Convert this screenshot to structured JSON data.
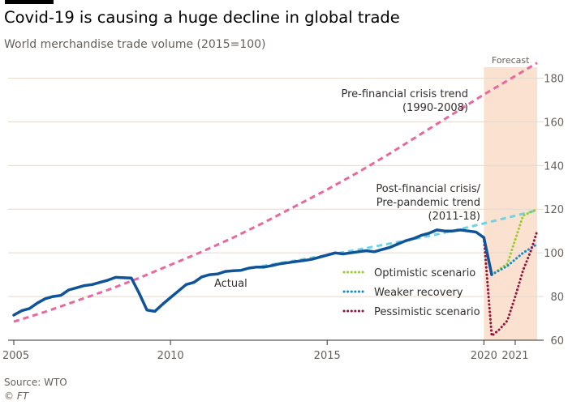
{
  "title": "Covid-19 is causing a huge decline in global trade",
  "subtitle": "World merchandise trade volume (2015=100)",
  "source": "Source: WTO",
  "credit": "© FT",
  "chart_data": {
    "type": "line",
    "title": "Covid-19 is causing a huge decline in global trade",
    "subtitle": "World merchandise trade volume (2015=100)",
    "xlabel": "",
    "ylabel": "",
    "xlim": [
      2005.0,
      2021.7
    ],
    "ylim": [
      60,
      185
    ],
    "yticks": [
      60,
      80,
      100,
      120,
      140,
      160,
      180
    ],
    "xticks": [
      {
        "value": 2005,
        "label": "2005"
      },
      {
        "value": 2010,
        "label": "2010"
      },
      {
        "value": 2015,
        "label": "2015"
      },
      {
        "value": 2020,
        "label": "2020"
      },
      {
        "value": 2021,
        "label": "2021"
      }
    ],
    "grid": true,
    "forecast": {
      "from": 2020.0,
      "to": 2021.7,
      "label": "Forecast",
      "color": "#fbe1cf"
    },
    "series": [
      {
        "name": "Pre-financial crisis trend (1990-2008)",
        "style": "dashed",
        "color": "#e8689f",
        "labels": [
          "Pre-financial crisis trend",
          "(1990-2008)"
        ],
        "points": [
          [
            2005,
            68.5
          ],
          [
            2006,
            73
          ],
          [
            2007,
            78
          ],
          [
            2008,
            83
          ],
          [
            2009,
            88.5
          ],
          [
            2010,
            94.5
          ],
          [
            2011,
            100.5
          ],
          [
            2012,
            107
          ],
          [
            2013,
            114
          ],
          [
            2014,
            121.5
          ],
          [
            2015,
            129
          ],
          [
            2016,
            137
          ],
          [
            2017,
            145.5
          ],
          [
            2018,
            154.5
          ],
          [
            2019,
            163.5
          ],
          [
            2020,
            172.5
          ],
          [
            2021,
            181
          ],
          [
            2021.7,
            187
          ]
        ]
      },
      {
        "name": "Post-financial crisis/Pre-pandemic trend (2011-18)",
        "style": "dashed",
        "color": "#6ed3e6",
        "labels": [
          "Post-financial crisis/",
          "Pre-pandemic trend",
          "(2011-18)"
        ],
        "points": [
          [
            2012.6,
            93.2
          ],
          [
            2014,
            96.5
          ],
          [
            2016,
            101.5
          ],
          [
            2018,
            107
          ],
          [
            2019,
            110
          ],
          [
            2020,
            113.5
          ],
          [
            2021,
            117
          ],
          [
            2021.7,
            119.5
          ]
        ]
      },
      {
        "name": "Actual",
        "style": "solid",
        "color": "#0f5499",
        "labels": [
          "Actual"
        ],
        "points": [
          [
            2005.0,
            71.5
          ],
          [
            2005.25,
            73.5
          ],
          [
            2005.5,
            74.5
          ],
          [
            2005.75,
            77
          ],
          [
            2006.0,
            79
          ],
          [
            2006.25,
            80
          ],
          [
            2006.5,
            80.5
          ],
          [
            2006.75,
            83
          ],
          [
            2007.0,
            84
          ],
          [
            2007.25,
            85
          ],
          [
            2007.5,
            85.5
          ],
          [
            2007.75,
            86.5
          ],
          [
            2008.0,
            87.5
          ],
          [
            2008.25,
            88.8
          ],
          [
            2008.5,
            88.6
          ],
          [
            2008.75,
            88.5
          ],
          [
            2009.0,
            81.5
          ],
          [
            2009.25,
            73.8
          ],
          [
            2009.5,
            73.2
          ],
          [
            2009.75,
            76.5
          ],
          [
            2010.0,
            79.5
          ],
          [
            2010.25,
            82.5
          ],
          [
            2010.5,
            85.5
          ],
          [
            2010.75,
            86.5
          ],
          [
            2011.0,
            89
          ],
          [
            2011.25,
            90
          ],
          [
            2011.5,
            90.3
          ],
          [
            2011.75,
            91.5
          ],
          [
            2012.0,
            91.8
          ],
          [
            2012.25,
            92
          ],
          [
            2012.5,
            93
          ],
          [
            2012.75,
            93.5
          ],
          [
            2013.0,
            93.5
          ],
          [
            2013.25,
            94.2
          ],
          [
            2013.5,
            95
          ],
          [
            2013.75,
            95.5
          ],
          [
            2014.0,
            96
          ],
          [
            2014.25,
            96.5
          ],
          [
            2014.5,
            97
          ],
          [
            2014.75,
            98
          ],
          [
            2015.0,
            99
          ],
          [
            2015.25,
            100
          ],
          [
            2015.5,
            99.5
          ],
          [
            2015.75,
            100
          ],
          [
            2016.0,
            100.5
          ],
          [
            2016.25,
            101
          ],
          [
            2016.5,
            100.5
          ],
          [
            2016.75,
            101.5
          ],
          [
            2017.0,
            102.5
          ],
          [
            2017.25,
            104
          ],
          [
            2017.5,
            105.5
          ],
          [
            2017.75,
            106.5
          ],
          [
            2018.0,
            108
          ],
          [
            2018.25,
            109
          ],
          [
            2018.5,
            110.5
          ],
          [
            2018.75,
            110
          ],
          [
            2019.0,
            110
          ],
          [
            2019.25,
            110.5
          ],
          [
            2019.5,
            110
          ],
          [
            2019.75,
            109.5
          ],
          [
            2020.0,
            107
          ],
          [
            2020.25,
            90
          ]
        ]
      },
      {
        "name": "Optimistic scenario",
        "style": "dotted",
        "color": "#96cc28",
        "labels": [
          "Optimistic scenario"
        ],
        "points": [
          [
            2020.25,
            90
          ],
          [
            2020.75,
            95
          ],
          [
            2021.25,
            117
          ],
          [
            2021.7,
            120
          ]
        ]
      },
      {
        "name": "Weaker recovery",
        "style": "dotted",
        "color": "#0f8ccc",
        "labels": [
          "Weaker recovery"
        ],
        "points": [
          [
            2020.25,
            90
          ],
          [
            2020.75,
            94
          ],
          [
            2021.25,
            100
          ],
          [
            2021.7,
            104
          ]
        ]
      },
      {
        "name": "Pessimistic scenario",
        "style": "dotted",
        "color": "#990f3d",
        "labels": [
          "Pessimistic scenario"
        ],
        "points": [
          [
            2020.0,
            107
          ],
          [
            2020.25,
            62
          ],
          [
            2020.5,
            65
          ],
          [
            2020.75,
            69
          ],
          [
            2021.0,
            80
          ],
          [
            2021.25,
            92
          ],
          [
            2021.5,
            101
          ],
          [
            2021.7,
            110
          ]
        ]
      }
    ],
    "legend": {
      "position": "bottom-right",
      "entries": [
        "Optimistic scenario",
        "Weaker recovery",
        "Pessimistic scenario"
      ]
    }
  }
}
